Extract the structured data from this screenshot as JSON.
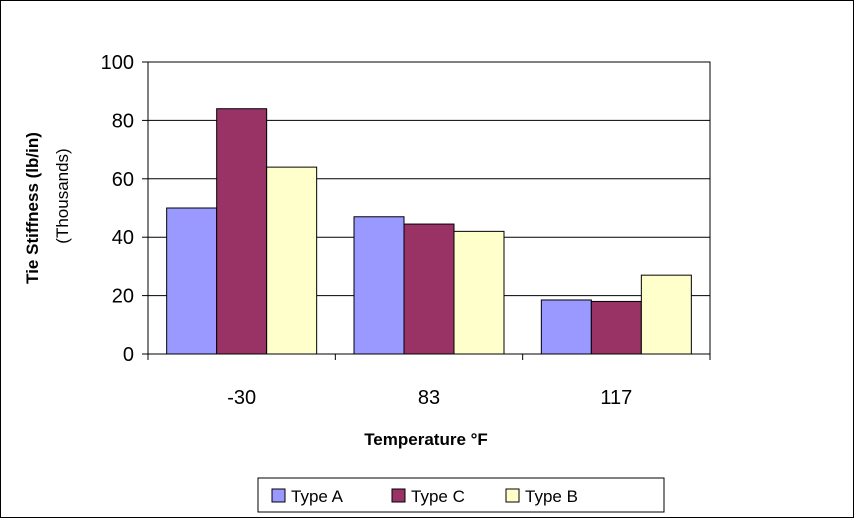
{
  "chart_data": {
    "type": "bar",
    "categories": [
      "-30",
      "83",
      "117"
    ],
    "series": [
      {
        "name": "Type A",
        "color": "#9999FF",
        "values": [
          50,
          47,
          18.5
        ]
      },
      {
        "name": "Type C",
        "color": "#993366",
        "values": [
          84,
          44.5,
          18
        ]
      },
      {
        "name": "Type B",
        "color": "#FFFFCC",
        "values": [
          64,
          42,
          27
        ]
      }
    ],
    "xlabel": "Temperature °F",
    "ylabel": "Tie Stiffness (lb/in)",
    "ylabel_sub": "(Thousands)",
    "ylim": [
      0,
      100
    ],
    "yticks": [
      0,
      20,
      40,
      60,
      80,
      100
    ],
    "grid": true,
    "legend_position": "bottom"
  }
}
